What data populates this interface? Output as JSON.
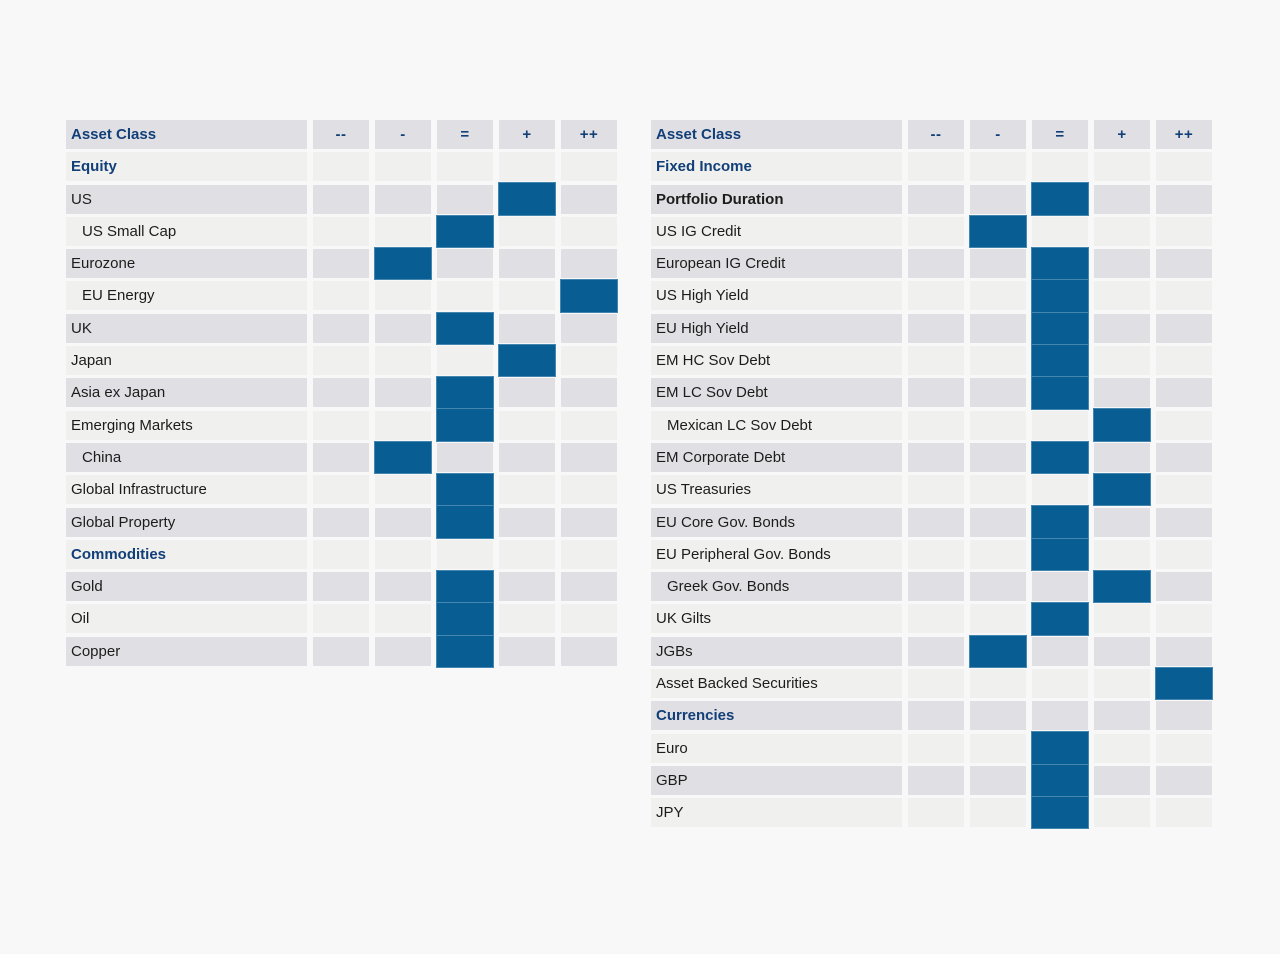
{
  "palette": {
    "page_background": "#f8f8f8",
    "stripe_dark": "#e0e0e4",
    "stripe_light": "#f0f0ef",
    "fill_blue": "#085d92",
    "navy_text": "#123f78",
    "label_text": "#1c1c1c"
  },
  "columns": [
    "--",
    "-",
    "=",
    "+",
    "++"
  ],
  "left_table": {
    "header": "Asset Class",
    "rows": [
      {
        "label": "Equity",
        "type": "section"
      },
      {
        "label": "US",
        "rating": "+"
      },
      {
        "label": "US Small Cap",
        "indent": true,
        "rating": "="
      },
      {
        "label": "Eurozone",
        "rating": "-"
      },
      {
        "label": "EU Energy",
        "indent": true,
        "rating": "++"
      },
      {
        "label": "UK",
        "rating": "="
      },
      {
        "label": "Japan",
        "rating": "+"
      },
      {
        "label": "Asia ex Japan",
        "rating": "="
      },
      {
        "label": "Emerging Markets",
        "rating": "="
      },
      {
        "label": "China",
        "indent": true,
        "rating": "-"
      },
      {
        "label": "Global Infrastructure",
        "rating": "="
      },
      {
        "label": "Global Property",
        "rating": "="
      },
      {
        "label": "Commodities",
        "type": "section"
      },
      {
        "label": "Gold",
        "rating": "="
      },
      {
        "label": "Oil",
        "rating": "="
      },
      {
        "label": "Copper",
        "rating": "="
      }
    ]
  },
  "right_table": {
    "header": "Asset Class",
    "rows": [
      {
        "label": "Fixed Income",
        "type": "section"
      },
      {
        "label": "Portfolio Duration",
        "type": "bold",
        "rating": "="
      },
      {
        "label": "US IG Credit",
        "rating": "-"
      },
      {
        "label": "European IG Credit",
        "rating": "="
      },
      {
        "label": "US High Yield",
        "rating": "="
      },
      {
        "label": "EU High Yield",
        "rating": "="
      },
      {
        "label": "EM HC Sov Debt",
        "rating": "="
      },
      {
        "label": "EM LC Sov Debt",
        "rating": "="
      },
      {
        "label": "Mexican LC Sov Debt",
        "indent": true,
        "rating": "+"
      },
      {
        "label": "EM Corporate Debt",
        "rating": "="
      },
      {
        "label": "US Treasuries",
        "rating": "+"
      },
      {
        "label": "EU Core Gov. Bonds",
        "rating": "="
      },
      {
        "label": "EU Peripheral Gov. Bonds",
        "rating": "="
      },
      {
        "label": "Greek Gov. Bonds",
        "indent": true,
        "rating": "+"
      },
      {
        "label": "UK Gilts",
        "rating": "="
      },
      {
        "label": "JGBs",
        "rating": "-"
      },
      {
        "label": "Asset Backed Securities",
        "rating": "++"
      },
      {
        "label": "Currencies",
        "type": "section"
      },
      {
        "label": "Euro",
        "rating": "="
      },
      {
        "label": "GBP",
        "rating": "="
      },
      {
        "label": "JPY",
        "rating": "="
      }
    ]
  }
}
